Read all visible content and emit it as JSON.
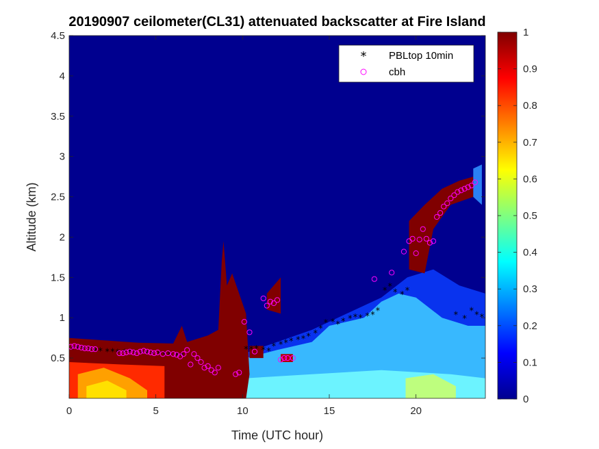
{
  "chart_data": {
    "type": "heatmap",
    "title": "20190907 ceilometer(CL31) attenuated backscatter at Fire Island",
    "xlabel": "Time (UTC hour)",
    "ylabel": "Altitude (km)",
    "xlim": [
      0,
      24
    ],
    "ylim": [
      0,
      4.5
    ],
    "xticks": [
      0,
      5,
      10,
      15,
      20
    ],
    "yticks": [
      0.5,
      1,
      1.5,
      2,
      2.5,
      3,
      3.5,
      4,
      4.5
    ],
    "colorbar": {
      "range": [
        0,
        1
      ],
      "ticks": [
        0,
        0.1,
        0.2,
        0.3,
        0.4,
        0.5,
        0.6,
        0.7,
        0.8,
        0.9,
        1
      ],
      "colormap": "jet"
    },
    "legend": {
      "placement": "top-right",
      "entries": [
        {
          "label": "PBLtop 10min",
          "marker": "asterisk",
          "color": "#000000"
        },
        {
          "label": "cbh",
          "marker": "circle",
          "color": "#ff00ff"
        }
      ]
    },
    "series": [
      {
        "name": "PBLtop 10min",
        "x": [
          0.2,
          0.5,
          0.8,
          1.2,
          1.5,
          1.8,
          2.2,
          2.5,
          2.8,
          3.2,
          3.5,
          3.8,
          4.2,
          4.5,
          4.8,
          5.2,
          5.5,
          5.8,
          6.2,
          6.5,
          10.2,
          10.5,
          10.8,
          11.2,
          11.5,
          11.8,
          12.2,
          12.5,
          12.8,
          13.2,
          13.5,
          13.8,
          14.2,
          14.5,
          14.8,
          15.2,
          15.5,
          15.8,
          16.2,
          16.5,
          16.8,
          17.2,
          17.5,
          17.8,
          18.2,
          18.5,
          18.8,
          19.2,
          19.5,
          22.3,
          22.8,
          23.2,
          23.5,
          23.8
        ],
        "y": [
          0.62,
          0.63,
          0.62,
          0.61,
          0.6,
          0.6,
          0.59,
          0.59,
          0.58,
          0.58,
          0.58,
          0.57,
          0.57,
          0.57,
          0.56,
          0.56,
          0.55,
          0.55,
          0.54,
          0.54,
          0.62,
          0.62,
          0.63,
          0.61,
          0.6,
          0.66,
          0.68,
          0.7,
          0.72,
          0.74,
          0.75,
          0.78,
          0.82,
          0.88,
          0.95,
          0.96,
          0.93,
          0.97,
          1.0,
          1.02,
          1.01,
          1.03,
          1.05,
          1.1,
          1.35,
          1.4,
          1.33,
          1.3,
          1.35,
          1.05,
          1.0,
          1.1,
          1.05,
          1.02
        ]
      },
      {
        "name": "cbh",
        "x": [
          0.1,
          0.3,
          0.5,
          0.7,
          0.9,
          1.1,
          1.3,
          1.5,
          2.9,
          3.1,
          3.3,
          3.5,
          3.7,
          3.9,
          4.1,
          4.3,
          4.5,
          4.7,
          4.9,
          5.1,
          5.4,
          5.7,
          6.0,
          6.2,
          6.4,
          6.6,
          6.8,
          7.0,
          7.2,
          7.4,
          7.6,
          7.8,
          8.0,
          8.2,
          8.4,
          8.6,
          9.6,
          9.8,
          10.1,
          10.4,
          10.7,
          11.2,
          11.4,
          11.6,
          11.8,
          12.0,
          12.2,
          12.4,
          12.6,
          12.9,
          17.6,
          18.6,
          19.3,
          19.6,
          19.8,
          20.0,
          20.2,
          20.4,
          20.6,
          20.8,
          21.0,
          21.2,
          21.4,
          21.6,
          21.8,
          22.0,
          22.2,
          22.4,
          22.6,
          22.8,
          23.0,
          23.2,
          23.4
        ],
        "y": [
          0.64,
          0.65,
          0.64,
          0.63,
          0.62,
          0.62,
          0.61,
          0.61,
          0.56,
          0.56,
          0.57,
          0.58,
          0.57,
          0.56,
          0.58,
          0.59,
          0.58,
          0.57,
          0.56,
          0.57,
          0.55,
          0.56,
          0.55,
          0.54,
          0.52,
          0.55,
          0.6,
          0.42,
          0.55,
          0.5,
          0.45,
          0.38,
          0.4,
          0.35,
          0.32,
          0.38,
          0.3,
          0.32,
          0.95,
          0.82,
          0.58,
          1.24,
          1.15,
          1.2,
          1.18,
          1.22,
          0.48,
          0.5,
          0.5,
          0.5,
          1.48,
          1.56,
          1.82,
          1.95,
          1.98,
          1.8,
          1.97,
          2.1,
          1.98,
          1.93,
          1.95,
          2.25,
          2.3,
          2.38,
          2.42,
          2.48,
          2.52,
          2.56,
          2.58,
          2.6,
          2.62,
          2.64,
          2.68
        ]
      }
    ]
  }
}
